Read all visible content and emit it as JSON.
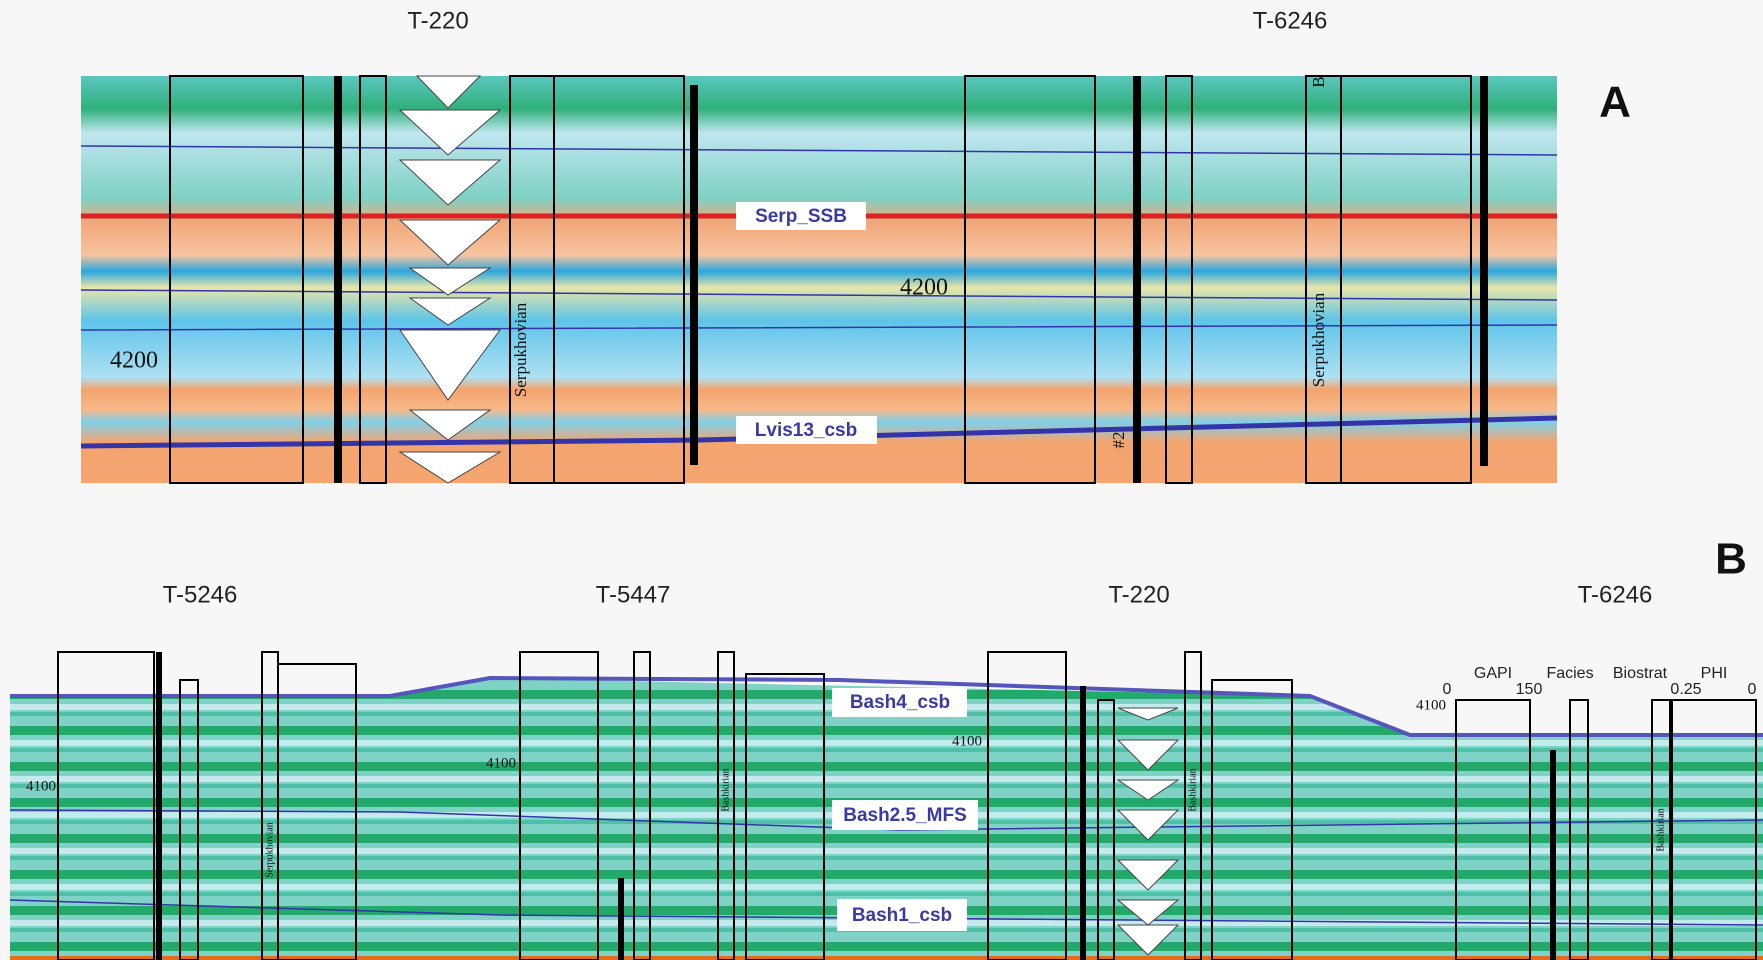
{
  "panels": [
    {
      "label": "A",
      "wells": [
        {
          "name": "T-220",
          "depth_label": "4200",
          "stage": "Serpukhovian"
        },
        {
          "name": "T-6246",
          "depth_label": "4200",
          "stage": "Serpukhovian",
          "marks": [
            "B",
            "#2"
          ]
        }
      ],
      "surfaces": [
        "Serp_SSB",
        "Lvis13_csb"
      ]
    },
    {
      "label": "B",
      "wells": [
        {
          "name": "T-5246",
          "depth_label": "4100",
          "stage": "Serpukhovian"
        },
        {
          "name": "T-5447",
          "depth_label": "4100",
          "stage": "Bashkirian"
        },
        {
          "name": "T-220",
          "depth_label": "4100",
          "stage": "Bashkirian"
        },
        {
          "name": "T-6246",
          "depth_label": "4100",
          "stage": "Bashkirian"
        }
      ],
      "surfaces": [
        "Bash4_csb",
        "Bash2.5_MFS",
        "Bash1_csb"
      ],
      "track_header": {
        "gamma": "GAPI",
        "gamma_min": "0",
        "gamma_max": "150",
        "facies": "Facies",
        "biostrat": "Biostrat",
        "porosity": "PHI",
        "porosity_min": "0.25",
        "porosity_max": "0"
      }
    }
  ]
}
